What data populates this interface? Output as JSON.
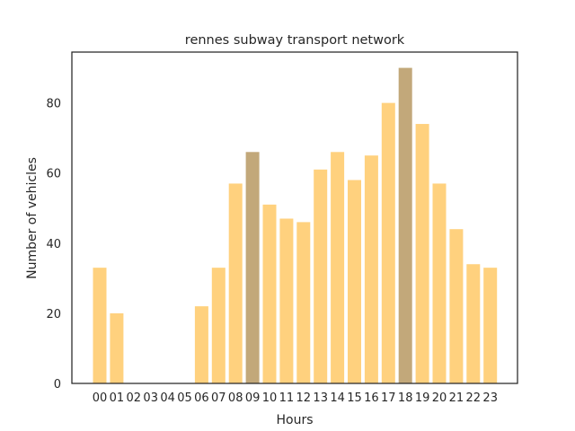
{
  "chart_data": {
    "type": "bar",
    "title": "rennes subway transport network",
    "xlabel": "Hours",
    "ylabel": "Number of vehicles",
    "categories": [
      "00",
      "01",
      "02",
      "03",
      "04",
      "05",
      "06",
      "07",
      "08",
      "09",
      "10",
      "11",
      "12",
      "13",
      "14",
      "15",
      "16",
      "17",
      "18",
      "19",
      "20",
      "21",
      "22",
      "23"
    ],
    "values": [
      33,
      20,
      0,
      0,
      0,
      0,
      22,
      33,
      57,
      66,
      51,
      47,
      46,
      61,
      66,
      58,
      65,
      80,
      90,
      74,
      57,
      44,
      34,
      33
    ],
    "highlighted": [
      "09",
      "18"
    ],
    "yticks": [
      0,
      20,
      40,
      60,
      80
    ],
    "ylim": [
      0,
      94.5
    ],
    "grid": false,
    "colors": {
      "bar": "#FFD17E",
      "highlight": "#C2A87A",
      "axis": "#262626"
    }
  }
}
